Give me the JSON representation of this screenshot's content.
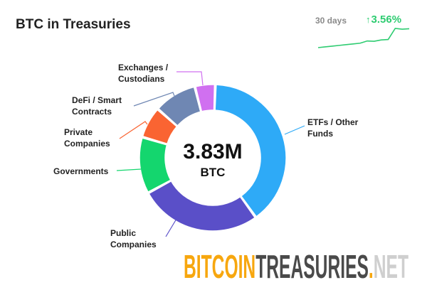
{
  "header": {
    "title": "BTC in Treasuries"
  },
  "trend": {
    "period": "30 days",
    "arrow": "↑",
    "change": "3.56%",
    "color": "#2ecc71",
    "sparkline": [
      0,
      0.5,
      1,
      1.5,
      2,
      2.5,
      3,
      4.5,
      4.3,
      5.2,
      5.5,
      13,
      12.5,
      12.8
    ]
  },
  "chart_data": {
    "type": "pie",
    "donut": true,
    "title": "BTC in Treasuries",
    "center_value": "3.83M",
    "center_unit": "BTC",
    "unit": "percent share (estimated)",
    "categories": [
      "ETFs / Other Funds",
      "Public Companies",
      "Governments",
      "Private Companies",
      "DeFi / Smart Contracts",
      "Exchanges / Custodians"
    ],
    "values": [
      39.5,
      27,
      12.5,
      7,
      9.5,
      4.5
    ],
    "colors": [
      "#2eaaf7",
      "#5a4fc8",
      "#14d66e",
      "#fa6432",
      "#6f87b3",
      "#d070f0"
    ]
  },
  "labels": {
    "etfs": [
      "ETFs / Other",
      "Funds"
    ],
    "public": [
      "Public",
      "Companies"
    ],
    "governments": [
      "Governments"
    ],
    "private": [
      "Private",
      "Companies"
    ],
    "defi": [
      "DeFi / Smart",
      "Contracts"
    ],
    "exchanges": [
      "Exchanges /",
      "Custodians"
    ]
  },
  "logo": {
    "part1": "BITCOIN",
    "part2": "TREASURIES",
    "dot": ".",
    "part3": "NET"
  }
}
